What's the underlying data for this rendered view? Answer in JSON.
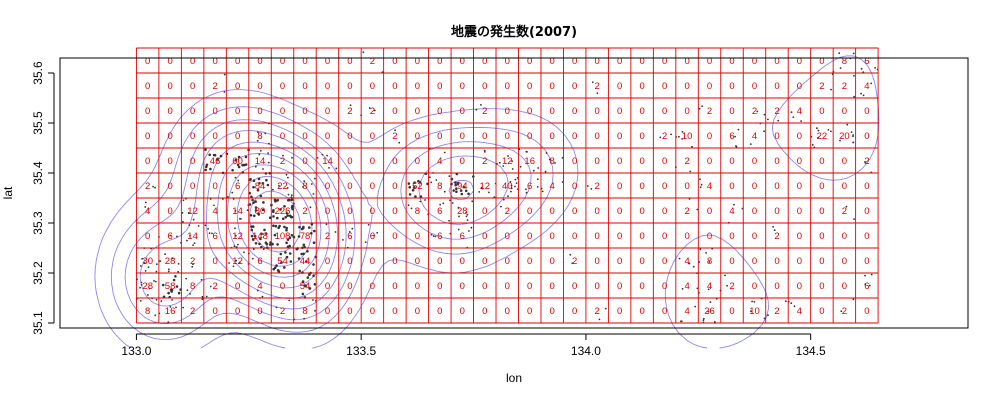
{
  "chart_data": {
    "type": "heatmap",
    "title": "地震の発生数(2007)",
    "xlabel": "lon",
    "ylabel": "lat",
    "xlim": [
      132.83,
      134.85
    ],
    "ylim": [
      35.09,
      35.63
    ],
    "xticks": [
      133.0,
      133.5,
      134.0,
      134.5
    ],
    "xtick_labels": [
      "133.0",
      "133.5",
      "134.0",
      "134.5"
    ],
    "yticks": [
      35.1,
      35.2,
      35.3,
      35.4,
      35.5,
      35.6
    ],
    "ytick_labels": [
      "35.1",
      "35.2",
      "35.3",
      "35.4",
      "35.5",
      "35.6"
    ],
    "grid": {
      "x_start": 133.0,
      "x_end": 134.65,
      "columns": 33,
      "y_start": 35.1,
      "y_end": 35.65,
      "rows": 11
    },
    "counts_rows_top_to_bottom": [
      [
        0,
        0,
        0,
        0,
        0,
        0,
        0,
        0,
        0,
        0,
        2,
        0,
        0,
        0,
        0,
        0,
        0,
        0,
        0,
        0,
        0,
        0,
        0,
        0,
        0,
        0,
        0,
        0,
        0,
        0,
        0,
        8,
        6
      ],
      [
        0,
        0,
        0,
        2,
        0,
        0,
        0,
        0,
        0,
        0,
        0,
        0,
        0,
        0,
        0,
        0,
        0,
        0,
        0,
        0,
        2,
        0,
        0,
        0,
        0,
        0,
        0,
        0,
        0,
        0,
        2,
        2,
        4
      ],
      [
        0,
        0,
        0,
        0,
        0,
        0,
        0,
        0,
        0,
        2,
        2,
        0,
        0,
        0,
        0,
        2,
        0,
        0,
        0,
        0,
        0,
        0,
        0,
        0,
        0,
        2,
        0,
        2,
        2,
        4,
        0,
        0,
        0
      ],
      [
        0,
        0,
        0,
        0,
        0,
        8,
        0,
        0,
        0,
        0,
        0,
        2,
        0,
        0,
        0,
        0,
        0,
        0,
        0,
        0,
        0,
        0,
        0,
        2,
        10,
        0,
        6,
        4,
        0,
        0,
        22,
        20,
        0
      ],
      [
        0,
        0,
        0,
        46,
        60,
        14,
        2,
        0,
        14,
        0,
        0,
        0,
        0,
        4,
        0,
        2,
        12,
        16,
        8,
        0,
        0,
        0,
        0,
        0,
        2,
        0,
        0,
        0,
        0,
        0,
        0,
        0,
        2
      ],
      [
        2,
        0,
        0,
        0,
        6,
        84,
        22,
        8,
        0,
        0,
        0,
        0,
        52,
        8,
        94,
        12,
        40,
        6,
        4,
        0,
        2,
        0,
        0,
        0,
        0,
        4,
        0,
        0,
        0,
        0,
        0,
        0,
        0
      ],
      [
        4,
        0,
        12,
        4,
        14,
        80,
        226,
        2,
        0,
        0,
        0,
        0,
        8,
        6,
        28,
        0,
        2,
        0,
        0,
        0,
        0,
        0,
        0,
        0,
        2,
        0,
        4,
        0,
        0,
        0,
        0,
        2,
        0
      ],
      [
        0,
        6,
        14,
        6,
        12,
        148,
        108,
        78,
        2,
        6,
        6,
        0,
        0,
        6,
        6,
        0,
        0,
        0,
        0,
        0,
        0,
        0,
        0,
        0,
        0,
        0,
        0,
        0,
        2,
        0,
        0,
        0,
        0
      ],
      [
        30,
        28,
        2,
        0,
        12,
        6,
        54,
        44,
        0,
        0,
        0,
        0,
        0,
        0,
        0,
        0,
        0,
        0,
        0,
        2,
        0,
        0,
        0,
        0,
        4,
        8,
        0,
        0,
        0,
        0,
        0,
        0,
        0
      ],
      [
        28,
        58,
        8,
        2,
        0,
        4,
        0,
        54,
        0,
        0,
        0,
        0,
        0,
        0,
        0,
        0,
        0,
        0,
        0,
        0,
        0,
        0,
        0,
        0,
        4,
        4,
        2,
        0,
        0,
        0,
        0,
        0,
        6
      ],
      [
        8,
        16,
        2,
        0,
        0,
        0,
        2,
        8,
        0,
        0,
        0,
        0,
        0,
        0,
        0,
        0,
        0,
        0,
        0,
        0,
        2,
        0,
        0,
        0,
        4,
        26,
        0,
        10,
        2,
        4,
        0,
        2,
        0
      ]
    ],
    "colors": {
      "grid": "#e00000",
      "labels": "#dd0000",
      "contour": "#8f86f0",
      "points": "#333333",
      "frame": "#000000"
    }
  }
}
